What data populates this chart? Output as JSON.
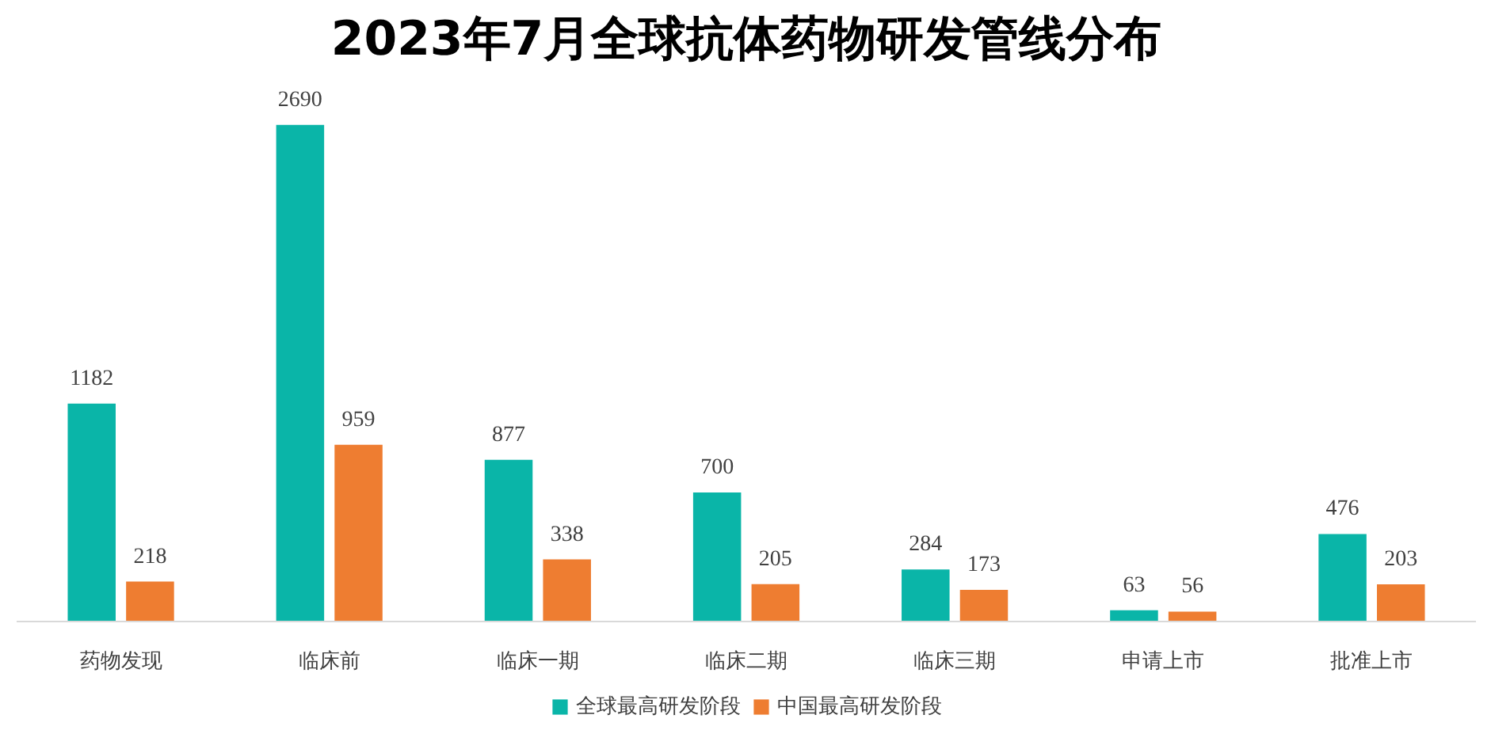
{
  "chart_data": {
    "type": "bar",
    "title": "2023年7月全球抗体药物研发管线分布",
    "categories": [
      "药物发现",
      "临床前",
      "临床一期",
      "临床二期",
      "临床三期",
      "申请上市",
      "批准上市"
    ],
    "series": [
      {
        "name": "全球最高研发阶段",
        "color": "#0ab5a8",
        "values": [
          1182,
          2690,
          877,
          700,
          284,
          63,
          476
        ]
      },
      {
        "name": "中国最高研发阶段",
        "color": "#ee7d31",
        "values": [
          218,
          959,
          338,
          205,
          173,
          56,
          203
        ]
      }
    ],
    "data_labels": true,
    "legend": "bottom"
  }
}
